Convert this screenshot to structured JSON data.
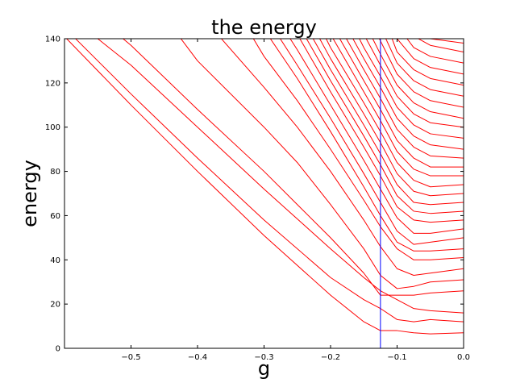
{
  "chart_data": {
    "type": "line",
    "title": "the energy",
    "xlabel": "g",
    "ylabel": "energy",
    "xlim": [
      -0.6,
      0.0
    ],
    "ylim": [
      0,
      140
    ],
    "x_ticks": [
      -0.5,
      -0.4,
      -0.3,
      -0.2,
      -0.1,
      0.0
    ],
    "x_tick_labels": [
      "−0.5",
      "−0.4",
      "−0.3",
      "−0.2",
      "−0.1",
      "0.0"
    ],
    "y_ticks": [
      0,
      20,
      40,
      60,
      80,
      100,
      120,
      140
    ],
    "y_tick_labels": [
      "0",
      "20",
      "40",
      "60",
      "80",
      "100",
      "120",
      "140"
    ],
    "grid": false,
    "legend": "none",
    "series_color": "#ff0000",
    "marker_color": "#0000ff",
    "marker_line": {
      "x": -0.125,
      "y": [
        0,
        140
      ]
    },
    "series": [
      {
        "x": [
          -0.6,
          -0.5,
          -0.4,
          -0.3,
          -0.2,
          -0.15,
          -0.125,
          -0.1,
          -0.075,
          -0.05,
          0.0
        ],
        "y": [
          141,
          110,
          80,
          51,
          24,
          12,
          8,
          8,
          7,
          6.5,
          7
        ]
      },
      {
        "x": [
          -0.6,
          -0.5,
          -0.4,
          -0.3,
          -0.2,
          -0.15,
          -0.125,
          -0.1,
          -0.075,
          -0.05,
          0.0
        ],
        "y": [
          145,
          115,
          86,
          58,
          32,
          22,
          18,
          13,
          12,
          13,
          12
        ]
      },
      {
        "x": [
          -0.55,
          -0.5,
          -0.4,
          -0.3,
          -0.2,
          -0.15,
          -0.125,
          -0.1,
          -0.075,
          -0.05,
          0.0
        ],
        "y": [
          140,
          128,
          100,
          72,
          45,
          32,
          26,
          22,
          18,
          17,
          16
        ]
      },
      {
        "x": [
          -0.52,
          -0.5,
          -0.4,
          -0.3,
          -0.25,
          -0.2,
          -0.15,
          -0.125,
          -0.1,
          -0.075,
          -0.05,
          0.0
        ],
        "y": [
          142,
          137,
          108,
          80,
          65,
          50,
          34,
          24,
          24,
          24,
          25,
          26
        ]
      },
      {
        "x": [
          -0.43,
          -0.4,
          -0.3,
          -0.25,
          -0.2,
          -0.15,
          -0.125,
          -0.1,
          -0.075,
          -0.05,
          0.0
        ],
        "y": [
          142,
          130,
          100,
          84,
          65,
          45,
          33,
          27,
          28,
          30,
          31
        ]
      },
      {
        "x": [
          -0.37,
          -0.3,
          -0.25,
          -0.2,
          -0.15,
          -0.125,
          -0.1,
          -0.075,
          -0.05,
          0.0
        ],
        "y": [
          142,
          118,
          100,
          80,
          58,
          46,
          36,
          33,
          34,
          36
        ]
      },
      {
        "x": [
          -0.32,
          -0.3,
          -0.25,
          -0.2,
          -0.15,
          -0.125,
          -0.1,
          -0.075,
          -0.05,
          0.0
        ],
        "y": [
          142,
          132,
          112,
          90,
          67,
          55,
          45,
          40,
          40,
          41
        ]
      },
      {
        "x": [
          -0.295,
          -0.25,
          -0.2,
          -0.15,
          -0.125,
          -0.1,
          -0.075,
          -0.05,
          0.0
        ],
        "y": [
          142,
          122,
          98,
          73,
          60,
          48,
          44,
          44,
          45
        ]
      },
      {
        "x": [
          -0.28,
          -0.25,
          -0.2,
          -0.15,
          -0.125,
          -0.1,
          -0.075,
          -0.05,
          0.0
        ],
        "y": [
          142,
          128,
          104,
          79,
          66,
          53,
          47,
          48,
          50
        ]
      },
      {
        "x": [
          -0.265,
          -0.25,
          -0.2,
          -0.15,
          -0.125,
          -0.1,
          -0.075,
          -0.05,
          0.0
        ],
        "y": [
          142,
          135,
          110,
          85,
          72,
          59,
          52,
          52,
          54
        ]
      },
      {
        "x": [
          -0.25,
          -0.2,
          -0.15,
          -0.125,
          -0.1,
          -0.075,
          -0.05,
          0.0
        ],
        "y": [
          142,
          116,
          91,
          78,
          64,
          58,
          57,
          58
        ]
      },
      {
        "x": [
          -0.24,
          -0.2,
          -0.15,
          -0.125,
          -0.1,
          -0.075,
          -0.05,
          0.0
        ],
        "y": [
          142,
          121,
          96,
          83,
          69,
          62,
          61,
          62
        ]
      },
      {
        "x": [
          -0.23,
          -0.2,
          -0.15,
          -0.125,
          -0.1,
          -0.075,
          -0.05,
          0.0
        ],
        "y": [
          142,
          126,
          101,
          88,
          74,
          66,
          65,
          66
        ]
      },
      {
        "x": [
          -0.22,
          -0.2,
          -0.15,
          -0.125,
          -0.1,
          -0.075,
          -0.05,
          0.0
        ],
        "y": [
          142,
          131,
          106,
          93,
          79,
          71,
          69,
          70
        ]
      },
      {
        "x": [
          -0.21,
          -0.2,
          -0.15,
          -0.125,
          -0.1,
          -0.075,
          -0.05,
          0.0
        ],
        "y": [
          142,
          136,
          111,
          98,
          84,
          76,
          73,
          74
        ]
      },
      {
        "x": [
          -0.2,
          -0.15,
          -0.125,
          -0.1,
          -0.075,
          -0.05,
          0.0
        ],
        "y": [
          142,
          116,
          103,
          89,
          81,
          78,
          78
        ]
      },
      {
        "x": [
          -0.19,
          -0.15,
          -0.125,
          -0.1,
          -0.075,
          -0.05,
          0.0
        ],
        "y": [
          142,
          121,
          108,
          94,
          86,
          82,
          82
        ]
      },
      {
        "x": [
          -0.18,
          -0.15,
          -0.125,
          -0.1,
          -0.075,
          -0.05,
          0.0
        ],
        "y": [
          142,
          126,
          113,
          99,
          91,
          87,
          86
        ]
      },
      {
        "x": [
          -0.17,
          -0.15,
          -0.125,
          -0.1,
          -0.075,
          -0.05,
          0.0
        ],
        "y": [
          142,
          131,
          118,
          104,
          96,
          92,
          90
        ]
      },
      {
        "x": [
          -0.16,
          -0.15,
          -0.125,
          -0.1,
          -0.075,
          -0.05,
          0.0
        ],
        "y": [
          142,
          136,
          123,
          109,
          101,
          97,
          95
        ]
      },
      {
        "x": [
          -0.15,
          -0.125,
          -0.1,
          -0.075,
          -0.05,
          0.0
        ],
        "y": [
          142,
          128,
          114,
          106,
          102,
          100
        ]
      },
      {
        "x": [
          -0.14,
          -0.125,
          -0.1,
          -0.075,
          -0.05,
          0.0
        ],
        "y": [
          142,
          133,
          119,
          111,
          107,
          104
        ]
      },
      {
        "x": [
          -0.13,
          -0.1,
          -0.075,
          -0.05,
          0.0
        ],
        "y": [
          142,
          124,
          116,
          112,
          109
        ]
      },
      {
        "x": [
          -0.12,
          -0.1,
          -0.075,
          -0.05,
          0.0
        ],
        "y": [
          142,
          129,
          121,
          117,
          114
        ]
      },
      {
        "x": [
          -0.11,
          -0.1,
          -0.075,
          -0.05,
          0.0
        ],
        "y": [
          142,
          134,
          126,
          122,
          119
        ]
      },
      {
        "x": [
          -0.1,
          -0.075,
          -0.05,
          0.0
        ],
        "y": [
          140,
          131,
          127,
          124
        ]
      },
      {
        "x": [
          -0.09,
          -0.075,
          -0.05,
          0.0
        ],
        "y": [
          142,
          136,
          132,
          129
        ]
      },
      {
        "x": [
          -0.08,
          -0.05,
          0.0
        ],
        "y": [
          142,
          137,
          134
        ]
      },
      {
        "x": [
          -0.07,
          -0.05,
          0.0
        ],
        "y": [
          142,
          140,
          138
        ]
      }
    ]
  }
}
